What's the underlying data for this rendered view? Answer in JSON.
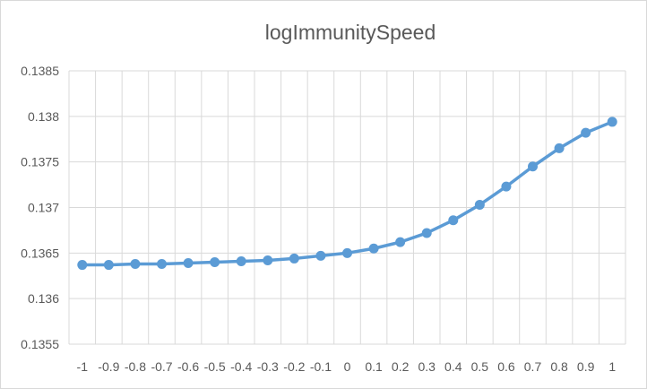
{
  "chart_data": {
    "type": "line",
    "title": "logImmunitySpeed",
    "xlabel": "",
    "ylabel": "",
    "categories": [
      "-1",
      "-0.9",
      "-0.8",
      "-0.7",
      "-0.6",
      "-0.5",
      "-0.4",
      "-0.3",
      "-0.2",
      "-0.1",
      "0",
      "0.1",
      "0.2",
      "0.3",
      "0.4",
      "0.5",
      "0.6",
      "0.7",
      "0.8",
      "0.9",
      "1"
    ],
    "y_tick_labels": [
      "0.1355",
      "0.136",
      "0.1365",
      "0.137",
      "0.1375",
      "0.138",
      "0.1385"
    ],
    "ylim": [
      0.1355,
      0.1385
    ],
    "grid": true,
    "legend": "none",
    "series": [
      {
        "values": [
          0.13637,
          0.13637,
          0.13638,
          0.13638,
          0.13639,
          0.1364,
          0.13641,
          0.13642,
          0.13644,
          0.13647,
          0.1365,
          0.13655,
          0.13662,
          0.13672,
          0.13686,
          0.13703,
          0.13723,
          0.13745,
          0.13765,
          0.13782,
          0.13794
        ],
        "color": "#5b9bd5"
      }
    ],
    "gridline_color": "#d9d9d9",
    "text_color": "#595959"
  }
}
